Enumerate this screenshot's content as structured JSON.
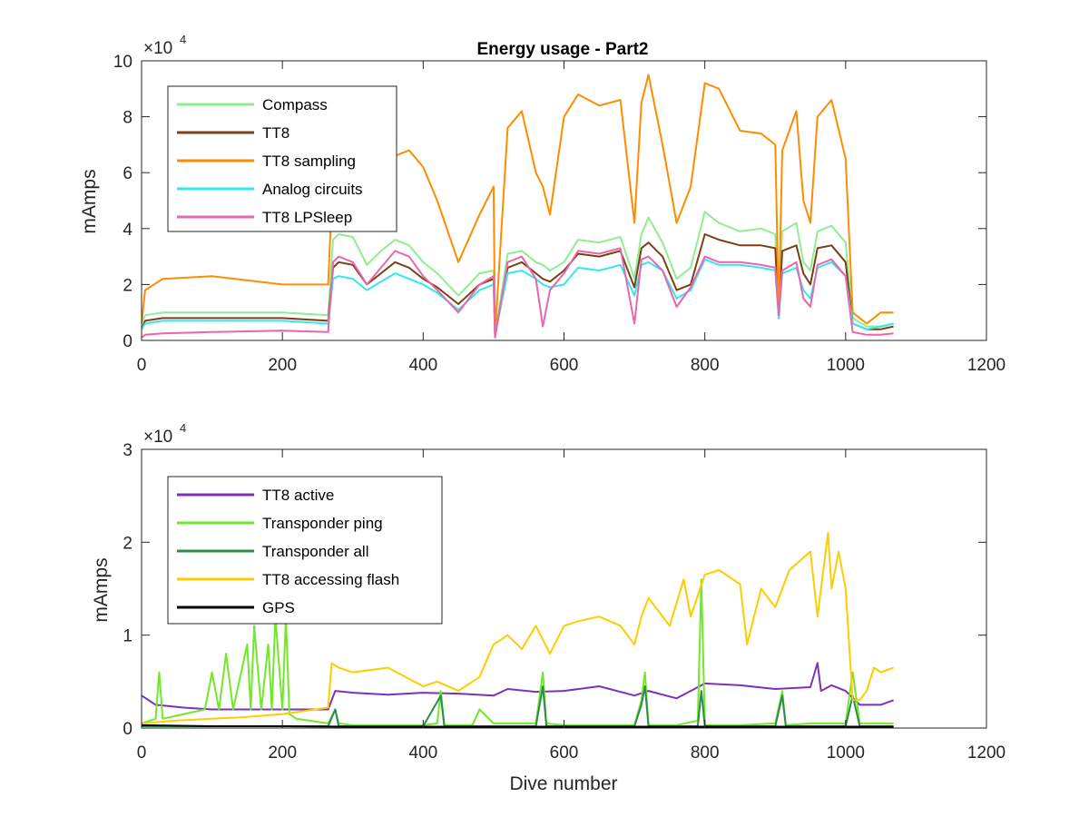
{
  "chart_data": [
    {
      "type": "line",
      "title": "Energy usage - Part2",
      "xlabel": "",
      "ylabel": "mAmps",
      "exponent_base": "×10",
      "exponent_power": "4",
      "xlim": [
        0,
        1200
      ],
      "ylim": [
        0,
        100000
      ],
      "xticks": [
        0,
        200,
        400,
        600,
        800,
        1000,
        1200
      ],
      "yticks": [
        0,
        20000,
        40000,
        60000,
        80000,
        100000
      ],
      "ytick_labels": [
        "0",
        "2",
        "4",
        "6",
        "8",
        "10"
      ],
      "grid": false,
      "legend_position": "top-left",
      "series": [
        {
          "name": "Compass",
          "color": "#90ee90",
          "x": [
            0,
            5,
            30,
            100,
            200,
            265,
            272,
            280,
            300,
            320,
            340,
            360,
            380,
            400,
            420,
            450,
            480,
            500,
            502,
            520,
            540,
            560,
            570,
            580,
            600,
            620,
            650,
            680,
            700,
            710,
            720,
            740,
            760,
            780,
            800,
            820,
            850,
            880,
            900,
            905,
            910,
            930,
            940,
            950,
            960,
            980,
            1000,
            1010,
            1030,
            1050,
            1068
          ],
          "y": [
            6000,
            9000,
            10000,
            10000,
            10000,
            9000,
            36000,
            38000,
            37000,
            27000,
            32000,
            36000,
            34000,
            28000,
            24000,
            16000,
            24000,
            25000,
            2000,
            31000,
            32000,
            28000,
            27000,
            25000,
            28000,
            36000,
            35000,
            37000,
            22000,
            38000,
            44000,
            35000,
            22000,
            26000,
            46000,
            42000,
            39000,
            40000,
            38000,
            10000,
            39000,
            42000,
            28000,
            25000,
            39000,
            41000,
            35000,
            8000,
            5000,
            5000,
            6000
          ]
        },
        {
          "name": "TT8",
          "color": "#7b3f14",
          "x": [
            0,
            5,
            30,
            100,
            200,
            265,
            272,
            280,
            300,
            320,
            340,
            360,
            380,
            400,
            420,
            450,
            480,
            500,
            502,
            520,
            540,
            560,
            570,
            580,
            600,
            620,
            650,
            680,
            700,
            710,
            720,
            740,
            760,
            780,
            800,
            820,
            850,
            880,
            900,
            905,
            910,
            930,
            940,
            950,
            960,
            980,
            1000,
            1010,
            1030,
            1050,
            1068
          ],
          "y": [
            4000,
            7000,
            8000,
            8000,
            8000,
            7000,
            26000,
            28000,
            27000,
            20000,
            24000,
            28000,
            26000,
            22000,
            19000,
            13000,
            20000,
            22000,
            2000,
            26000,
            28000,
            24000,
            22000,
            21000,
            25000,
            31000,
            30000,
            32000,
            19000,
            33000,
            35000,
            30000,
            18000,
            20000,
            38000,
            36000,
            34000,
            34000,
            33000,
            8000,
            32000,
            34000,
            24000,
            20000,
            33000,
            34000,
            28000,
            6000,
            4000,
            4000,
            5000
          ]
        },
        {
          "name": "TT8 sampling",
          "color": "#ff8c00",
          "x": [
            0,
            5,
            30,
            100,
            200,
            265,
            272,
            280,
            300,
            320,
            340,
            360,
            380,
            400,
            420,
            450,
            480,
            500,
            502,
            520,
            540,
            560,
            570,
            580,
            600,
            620,
            650,
            680,
            700,
            710,
            720,
            740,
            760,
            780,
            800,
            820,
            850,
            880,
            900,
            905,
            910,
            930,
            940,
            950,
            960,
            980,
            1000,
            1010,
            1030,
            1050,
            1068
          ],
          "y": [
            6000,
            18000,
            22000,
            23000,
            20000,
            20000,
            60000,
            65000,
            64000,
            52000,
            58000,
            66000,
            68000,
            62000,
            50000,
            28000,
            45000,
            55000,
            2000,
            76000,
            82000,
            60000,
            55000,
            45000,
            80000,
            88000,
            84000,
            86000,
            42000,
            85000,
            95000,
            70000,
            42000,
            55000,
            92000,
            90000,
            75000,
            74000,
            70000,
            10000,
            68000,
            82000,
            50000,
            42000,
            80000,
            86000,
            65000,
            10000,
            6000,
            10000,
            10000
          ]
        },
        {
          "name": "Analog circuits",
          "color": "#33e8ec",
          "x": [
            0,
            5,
            30,
            100,
            200,
            265,
            272,
            280,
            300,
            320,
            340,
            360,
            380,
            400,
            420,
            450,
            480,
            500,
            502,
            520,
            540,
            560,
            570,
            580,
            600,
            620,
            650,
            680,
            700,
            710,
            720,
            740,
            760,
            780,
            800,
            820,
            850,
            880,
            900,
            905,
            910,
            930,
            940,
            950,
            960,
            980,
            1000,
            1010,
            1030,
            1050,
            1068
          ],
          "y": [
            4000,
            6000,
            7000,
            7000,
            7000,
            6000,
            22000,
            23000,
            22000,
            18000,
            21000,
            24000,
            22000,
            20000,
            17000,
            11000,
            18000,
            20000,
            2000,
            24000,
            25000,
            22000,
            20000,
            19000,
            20000,
            26000,
            25000,
            27000,
            16000,
            27000,
            28000,
            25000,
            15000,
            18000,
            29000,
            27000,
            27000,
            26000,
            25000,
            8000,
            24000,
            26000,
            18000,
            15000,
            26000,
            28000,
            23000,
            6000,
            4000,
            5000,
            6000
          ]
        },
        {
          "name": "TT8 LPSleep",
          "color": "#e966ac",
          "x": [
            0,
            5,
            30,
            100,
            200,
            265,
            272,
            280,
            300,
            320,
            340,
            360,
            380,
            400,
            420,
            450,
            480,
            500,
            502,
            520,
            540,
            560,
            570,
            580,
            600,
            620,
            650,
            680,
            700,
            710,
            720,
            740,
            760,
            780,
            800,
            820,
            850,
            880,
            900,
            905,
            910,
            930,
            940,
            950,
            960,
            980,
            1000,
            1010,
            1030,
            1050,
            1068
          ],
          "y": [
            1000,
            2000,
            2500,
            3000,
            3500,
            3000,
            28000,
            30000,
            28000,
            20000,
            26000,
            32000,
            30000,
            23000,
            18000,
            10000,
            20000,
            23000,
            1000,
            28000,
            30000,
            22000,
            5000,
            18000,
            24000,
            32000,
            31000,
            33000,
            6000,
            29000,
            30000,
            25000,
            12000,
            19000,
            30000,
            28000,
            28000,
            27000,
            26000,
            9000,
            25000,
            28000,
            15000,
            12000,
            27000,
            29000,
            23000,
            3000,
            2000,
            2000,
            2500
          ]
        }
      ]
    },
    {
      "type": "line",
      "title": "",
      "xlabel": "Dive number",
      "ylabel": "mAmps",
      "exponent_base": "×10",
      "exponent_power": "4",
      "xlim": [
        0,
        1200
      ],
      "ylim": [
        0,
        30000
      ],
      "xticks": [
        0,
        200,
        400,
        600,
        800,
        1000,
        1200
      ],
      "yticks": [
        0,
        10000,
        20000,
        30000
      ],
      "ytick_labels": [
        "0",
        "1",
        "2",
        "3"
      ],
      "grid": false,
      "legend_position": "top-left",
      "series": [
        {
          "name": "TT8 active",
          "color": "#7e2fbd",
          "x": [
            0,
            20,
            60,
            100,
            200,
            265,
            275,
            300,
            350,
            400,
            450,
            500,
            520,
            560,
            600,
            650,
            700,
            720,
            760,
            800,
            850,
            900,
            950,
            960,
            965,
            980,
            1000,
            1020,
            1050,
            1068
          ],
          "y": [
            3500,
            2500,
            2200,
            2000,
            2000,
            2000,
            4000,
            3800,
            3600,
            3800,
            3700,
            3500,
            4200,
            3900,
            4000,
            4500,
            3500,
            4000,
            3200,
            4800,
            4600,
            4200,
            4400,
            7000,
            4000,
            4600,
            4000,
            2500,
            2500,
            3000
          ]
        },
        {
          "name": "Transponder ping",
          "color": "#72e82a",
          "x": [
            0,
            20,
            25,
            30,
            60,
            90,
            100,
            110,
            120,
            130,
            150,
            155,
            160,
            170,
            180,
            185,
            190,
            200,
            205,
            210,
            220,
            265,
            275,
            280,
            300,
            350,
            400,
            420,
            425,
            430,
            470,
            480,
            500,
            560,
            570,
            575,
            600,
            650,
            700,
            710,
            715,
            720,
            760,
            790,
            795,
            800,
            850,
            900,
            910,
            915,
            950,
            980,
            1000,
            1010,
            1020,
            1050,
            1068
          ],
          "y": [
            500,
            1000,
            6000,
            1000,
            1500,
            2000,
            6000,
            2000,
            8000,
            2000,
            9000,
            2000,
            11000,
            2000,
            9000,
            2000,
            12000,
            2000,
            12000,
            1500,
            1000,
            500,
            2000,
            500,
            300,
            300,
            300,
            500,
            4000,
            300,
            300,
            2000,
            500,
            500,
            6000,
            500,
            300,
            300,
            300,
            3000,
            6000,
            300,
            300,
            800,
            16000,
            300,
            300,
            500,
            4000,
            300,
            500,
            500,
            500,
            6000,
            500,
            500,
            500
          ]
        },
        {
          "name": "Transponder all",
          "color": "#2e8b4f",
          "x": [
            0,
            265,
            275,
            280,
            300,
            400,
            425,
            430,
            500,
            560,
            570,
            575,
            600,
            700,
            710,
            715,
            720,
            790,
            795,
            800,
            900,
            910,
            915,
            950,
            1000,
            1010,
            1020,
            1068
          ],
          "y": [
            200,
            200,
            2000,
            200,
            200,
            200,
            3500,
            200,
            200,
            200,
            4500,
            200,
            200,
            200,
            2500,
            4500,
            200,
            200,
            4000,
            200,
            200,
            3500,
            200,
            200,
            200,
            3500,
            200,
            200
          ]
        },
        {
          "name": "TT8 accessing flash",
          "color": "#ffcc00",
          "x": [
            0,
            50,
            100,
            150,
            200,
            265,
            270,
            280,
            300,
            350,
            400,
            420,
            450,
            480,
            500,
            520,
            540,
            560,
            580,
            600,
            620,
            650,
            680,
            700,
            710,
            720,
            750,
            770,
            780,
            800,
            820,
            850,
            860,
            880,
            900,
            920,
            950,
            960,
            975,
            980,
            990,
            1000,
            1010,
            1020,
            1030,
            1040,
            1050,
            1068
          ],
          "y": [
            500,
            800,
            1000,
            1200,
            1500,
            2200,
            7000,
            6500,
            6000,
            6500,
            4500,
            5000,
            4000,
            5500,
            9000,
            10000,
            8500,
            11000,
            8000,
            11000,
            11500,
            12000,
            11000,
            9000,
            12000,
            14000,
            11000,
            16000,
            12000,
            16500,
            17000,
            15500,
            9000,
            15000,
            13000,
            17000,
            19000,
            12000,
            21000,
            15000,
            19000,
            15000,
            3000,
            3000,
            4000,
            6500,
            6000,
            6500
          ]
        },
        {
          "name": "GPS",
          "color": "#000000",
          "x": [
            0,
            100,
            200,
            300,
            400,
            500,
            600,
            700,
            800,
            900,
            1000,
            1068
          ],
          "y": [
            300,
            200,
            200,
            150,
            150,
            150,
            150,
            150,
            150,
            150,
            150,
            150
          ]
        }
      ]
    }
  ]
}
